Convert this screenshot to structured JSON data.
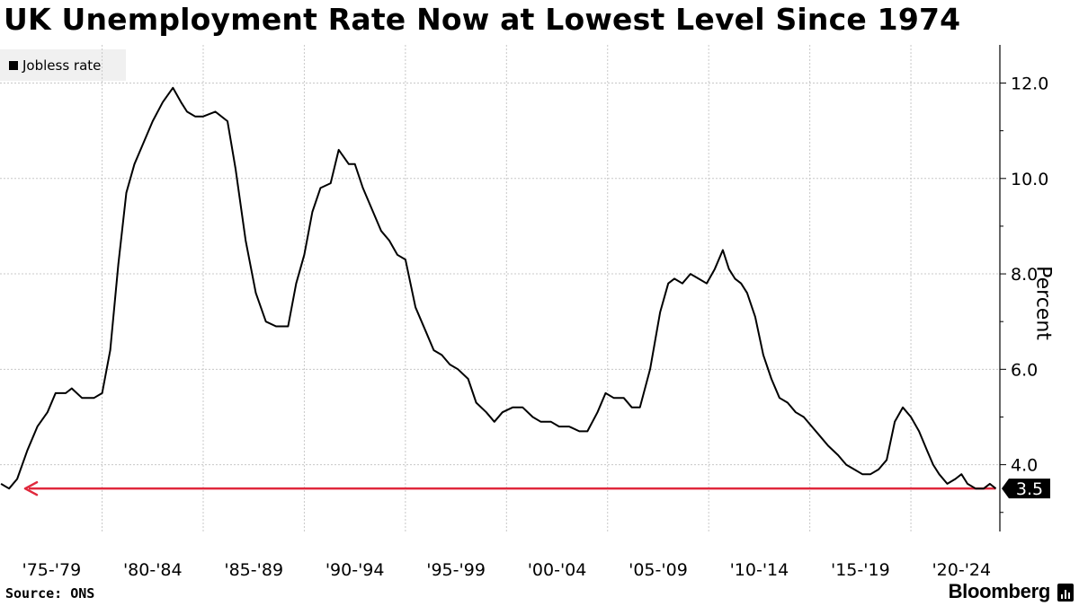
{
  "chart_data": {
    "type": "line",
    "title": "UK Unemployment Rate Now at Lowest Level Since 1974",
    "xlabel": "",
    "ylabel": "Percent",
    "ylim": [
      2.6,
      12.8
    ],
    "xlim": [
      1974.95,
      2024.4
    ],
    "yticks": [
      4.0,
      6.0,
      8.0,
      10.0,
      12.0
    ],
    "ytick_labels": [
      "4.0",
      "6.0",
      "8.0",
      "10.0",
      "12.0"
    ],
    "x_period_labels": [
      "'75-'79",
      "'80-'84",
      "'85-'89",
      "'90-'94",
      "'95-'99",
      "'00-'04",
      "'05-'09",
      "'10-'14",
      "'15-'19",
      "'20-'24"
    ],
    "x_period_starts": [
      1975,
      1980,
      1985,
      1990,
      1995,
      2000,
      2005,
      2010,
      2015,
      2020
    ],
    "grid": true,
    "legend": {
      "position": "top-left",
      "entries": [
        "Jobless rate"
      ]
    },
    "series": [
      {
        "name": "Jobless rate",
        "color": "#000000",
        "x": [
          1975.0,
          1975.4,
          1975.8,
          1976.3,
          1976.8,
          1977.3,
          1977.7,
          1978.2,
          1978.5,
          1979.0,
          1979.6,
          1980.0,
          1980.4,
          1980.8,
          1981.2,
          1981.6,
          1982.0,
          1982.5,
          1983.0,
          1983.5,
          1983.9,
          1984.2,
          1984.6,
          1985.0,
          1985.6,
          1986.2,
          1986.6,
          1987.1,
          1987.6,
          1988.1,
          1988.6,
          1989.2,
          1989.6,
          1990.0,
          1990.4,
          1990.8,
          1991.3,
          1991.7,
          1992.2,
          1992.5,
          1992.9,
          1993.4,
          1993.8,
          1994.2,
          1994.6,
          1995.0,
          1995.5,
          1996.0,
          1996.4,
          1996.8,
          1997.2,
          1997.6,
          1998.1,
          1998.5,
          1999.0,
          1999.4,
          1999.8,
          2000.3,
          2000.8,
          2001.3,
          2001.7,
          2002.2,
          2002.6,
          2003.1,
          2003.6,
          2004.0,
          2004.5,
          2004.9,
          2005.3,
          2005.8,
          2006.2,
          2006.6,
          2007.1,
          2007.6,
          2008.0,
          2008.3,
          2008.7,
          2009.1,
          2009.5,
          2009.9,
          2010.3,
          2010.7,
          2011.0,
          2011.3,
          2011.6,
          2011.9,
          2012.3,
          2012.7,
          2013.1,
          2013.5,
          2013.9,
          2014.3,
          2014.7,
          2015.1,
          2015.5,
          2015.9,
          2016.4,
          2016.8,
          2017.2,
          2017.6,
          2018.0,
          2018.4,
          2018.8,
          2019.2,
          2019.6,
          2020.0,
          2020.4,
          2020.8,
          2021.1,
          2021.4,
          2021.8,
          2022.2,
          2022.5,
          2022.8,
          2023.2,
          2023.6,
          2023.9,
          2024.2
        ],
        "y": [
          3.6,
          3.5,
          3.7,
          4.3,
          4.8,
          5.1,
          5.5,
          5.5,
          5.6,
          5.4,
          5.4,
          5.5,
          6.4,
          8.2,
          9.7,
          10.3,
          10.7,
          11.2,
          11.6,
          11.9,
          11.6,
          11.4,
          11.3,
          11.3,
          11.4,
          11.2,
          10.2,
          8.7,
          7.6,
          7.0,
          6.9,
          6.9,
          7.8,
          8.4,
          9.3,
          9.8,
          9.9,
          10.6,
          10.3,
          10.3,
          9.8,
          9.3,
          8.9,
          8.7,
          8.4,
          8.3,
          7.3,
          6.8,
          6.4,
          6.3,
          6.1,
          6.0,
          5.8,
          5.3,
          5.1,
          4.9,
          5.1,
          5.2,
          5.2,
          5.0,
          4.9,
          4.9,
          4.8,
          4.8,
          4.7,
          4.7,
          5.1,
          5.5,
          5.4,
          5.4,
          5.2,
          5.2,
          6.0,
          7.2,
          7.8,
          7.9,
          7.8,
          8.0,
          7.9,
          7.8,
          8.1,
          8.5,
          8.1,
          7.9,
          7.8,
          7.6,
          7.1,
          6.3,
          5.8,
          5.4,
          5.3,
          5.1,
          5.0,
          4.8,
          4.6,
          4.4,
          4.2,
          4.0,
          3.9,
          3.8,
          3.8,
          3.9,
          4.1,
          4.9,
          5.2,
          5.0,
          4.7,
          4.3,
          4.0,
          3.8,
          3.6,
          3.7,
          3.8,
          3.6,
          3.5,
          3.5,
          3.6,
          3.5
        ]
      }
    ],
    "annotations": [
      {
        "type": "reference-arrow",
        "value": 3.5,
        "color": "#e0283c",
        "direction": "left"
      },
      {
        "type": "end-value-tag",
        "value": 3.5,
        "label": "3.5"
      }
    ]
  },
  "footer": {
    "source": "Source: ONS",
    "brand": "Bloomberg"
  }
}
